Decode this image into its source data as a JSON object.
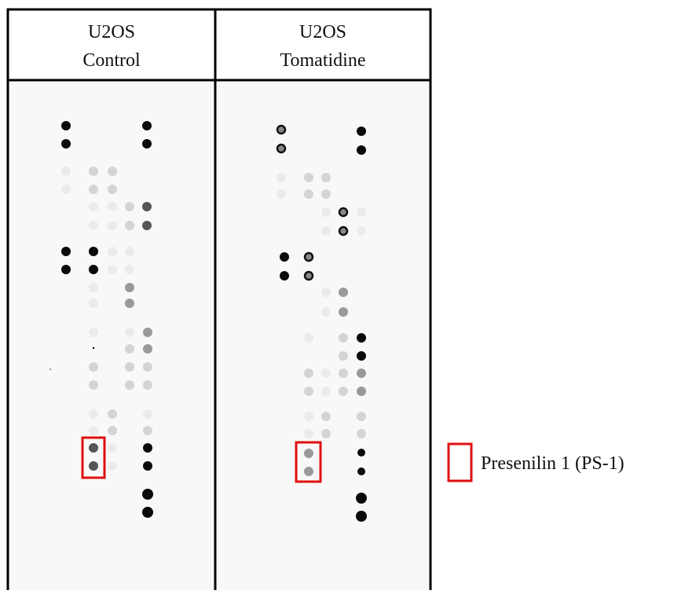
{
  "columns": [
    {
      "line1": "U2OS",
      "line2": "Control"
    },
    {
      "line1": "U2OS",
      "line2": "Tomatidine"
    }
  ],
  "legend": {
    "label": "Presenilin 1 (PS-1)"
  }
}
